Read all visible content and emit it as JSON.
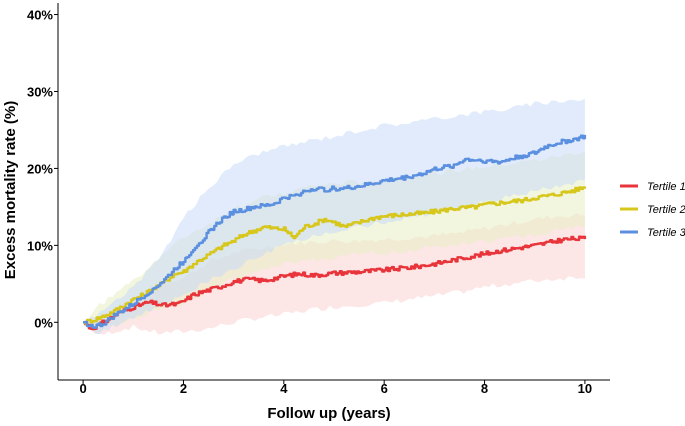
{
  "chart_data": {
    "type": "line",
    "title": "",
    "xlabel": "Follow up (years)",
    "ylabel": "Excess mortality rate (%)",
    "xlim": [
      -0.5,
      10.5
    ],
    "ylim": [
      -7.5,
      41.5
    ],
    "x_ticks": [
      0,
      2,
      4,
      6,
      8,
      10
    ],
    "x_tick_labels": [
      "0",
      "2",
      "4",
      "6",
      "8",
      "10"
    ],
    "y_ticks": [
      0,
      10,
      20,
      30,
      40
    ],
    "y_tick_labels": [
      "0%",
      "10%",
      "20%",
      "30%",
      "40%"
    ],
    "legend_position": "right",
    "series": [
      {
        "name": "Tertile 1",
        "color": "#e8353b",
        "band_color": "#fbd1d1",
        "points": [
          [
            0,
            0
          ],
          [
            0.15,
            -0.8
          ],
          [
            0.3,
            -0.4
          ],
          [
            0.5,
            0.4
          ],
          [
            0.7,
            1.2
          ],
          [
            1,
            2
          ],
          [
            1.3,
            2.6
          ],
          [
            1.6,
            2.2
          ],
          [
            1.9,
            2.4
          ],
          [
            2.2,
            3.6
          ],
          [
            2.5,
            4.2
          ],
          [
            2.8,
            4.8
          ],
          [
            3,
            5.3
          ],
          [
            3.3,
            5.6
          ],
          [
            3.6,
            5.4
          ],
          [
            4,
            6
          ],
          [
            4.3,
            6.3
          ],
          [
            4.6,
            6.1
          ],
          [
            5,
            6.4
          ],
          [
            5.3,
            6.5
          ],
          [
            5.6,
            6.6
          ],
          [
            6,
            6.8
          ],
          [
            6.3,
            7
          ],
          [
            6.6,
            7.2
          ],
          [
            7,
            7.6
          ],
          [
            7.3,
            8
          ],
          [
            7.6,
            8.4
          ],
          [
            8,
            8.9
          ],
          [
            8.3,
            9.3
          ],
          [
            8.6,
            9.6
          ],
          [
            9,
            10
          ],
          [
            9.3,
            10.4
          ],
          [
            9.6,
            10.8
          ],
          [
            10,
            10.9
          ]
        ],
        "lower": [
          [
            0,
            0
          ],
          [
            0.3,
            -1.8
          ],
          [
            0.6,
            -1.2
          ],
          [
            1,
            -0.6
          ],
          [
            1.5,
            -1.4
          ],
          [
            2,
            -1.2
          ],
          [
            2.5,
            -0.8
          ],
          [
            3,
            0
          ],
          [
            3.5,
            0.6
          ],
          [
            4,
            1
          ],
          [
            4.5,
            1.6
          ],
          [
            5,
            2
          ],
          [
            5.5,
            2.3
          ],
          [
            6,
            2.5
          ],
          [
            6.5,
            3
          ],
          [
            7,
            3.4
          ],
          [
            7.5,
            3.9
          ],
          [
            8,
            4.6
          ],
          [
            8.5,
            5
          ],
          [
            9,
            5.4
          ],
          [
            9.5,
            5.7
          ],
          [
            10,
            6
          ]
        ],
        "upper": [
          [
            0,
            0
          ],
          [
            0.3,
            0.8
          ],
          [
            0.6,
            1.6
          ],
          [
            1,
            3.2
          ],
          [
            1.5,
            5
          ],
          [
            2,
            5.8
          ],
          [
            2.5,
            7.8
          ],
          [
            3,
            9
          ],
          [
            3.5,
            9.6
          ],
          [
            4,
            10.2
          ],
          [
            4.5,
            10.4
          ],
          [
            5,
            10.6
          ],
          [
            5.5,
            10.6
          ],
          [
            6,
            10.8
          ],
          [
            6.5,
            11
          ],
          [
            7,
            11.2
          ],
          [
            7.5,
            11.6
          ],
          [
            8,
            12.2
          ],
          [
            8.5,
            12.8
          ],
          [
            9,
            13.4
          ],
          [
            9.5,
            13.8
          ],
          [
            10,
            14
          ]
        ]
      },
      {
        "name": "Tertile 2",
        "color": "#d7c71c",
        "band_color": "#e8efc2",
        "points": [
          [
            0,
            0
          ],
          [
            0.2,
            0.3
          ],
          [
            0.4,
            0.8
          ],
          [
            0.6,
            1.4
          ],
          [
            0.8,
            2.2
          ],
          [
            1,
            3
          ],
          [
            1.2,
            3.6
          ],
          [
            1.4,
            4.4
          ],
          [
            1.6,
            5.2
          ],
          [
            1.8,
            6.2
          ],
          [
            2,
            6.6
          ],
          [
            2.2,
            7.6
          ],
          [
            2.4,
            8.4
          ],
          [
            2.6,
            9.2
          ],
          [
            2.8,
            10
          ],
          [
            3,
            10.6
          ],
          [
            3.2,
            11.4
          ],
          [
            3.4,
            11.9
          ],
          [
            3.6,
            12.4
          ],
          [
            3.8,
            12.2
          ],
          [
            4,
            12.1
          ],
          [
            4.2,
            11
          ],
          [
            4.4,
            12.4
          ],
          [
            4.6,
            12.8
          ],
          [
            4.8,
            13.4
          ],
          [
            5,
            13
          ],
          [
            5.2,
            12.4
          ],
          [
            5.4,
            12.8
          ],
          [
            5.6,
            13.2
          ],
          [
            5.8,
            13.6
          ],
          [
            6,
            13.8
          ],
          [
            6.4,
            14
          ],
          [
            6.8,
            14.2
          ],
          [
            7,
            14.4
          ],
          [
            7.4,
            14.8
          ],
          [
            7.8,
            15
          ],
          [
            8,
            15.3
          ],
          [
            8.4,
            15.6
          ],
          [
            8.8,
            15.9
          ],
          [
            9,
            16.2
          ],
          [
            9.4,
            16.6
          ],
          [
            9.8,
            17.2
          ],
          [
            10,
            17.6
          ]
        ],
        "lower": [
          [
            0,
            0
          ],
          [
            0.3,
            -1
          ],
          [
            0.6,
            -0.4
          ],
          [
            1,
            0.6
          ],
          [
            1.5,
            1.6
          ],
          [
            2,
            2.4
          ],
          [
            2.5,
            4
          ],
          [
            3,
            5.6
          ],
          [
            3.5,
            6.6
          ],
          [
            4,
            7.6
          ],
          [
            4.5,
            8
          ],
          [
            5,
            8.4
          ],
          [
            5.5,
            8.8
          ],
          [
            6,
            9.1
          ],
          [
            6.5,
            9.4
          ],
          [
            7,
            9.8
          ],
          [
            7.5,
            10.2
          ],
          [
            8,
            10.6
          ],
          [
            8.5,
            11
          ],
          [
            9,
            11.4
          ],
          [
            9.5,
            12
          ],
          [
            10,
            12.5
          ]
        ],
        "upper": [
          [
            0,
            0
          ],
          [
            0.3,
            2
          ],
          [
            0.6,
            3.6
          ],
          [
            1,
            5.4
          ],
          [
            1.5,
            8.4
          ],
          [
            2,
            11
          ],
          [
            2.5,
            12.8
          ],
          [
            3,
            14.8
          ],
          [
            3.5,
            16
          ],
          [
            4,
            16.8
          ],
          [
            4.5,
            17.6
          ],
          [
            5,
            18
          ],
          [
            5.5,
            18.2
          ],
          [
            6,
            18.6
          ],
          [
            6.5,
            19
          ],
          [
            7,
            19.4
          ],
          [
            7.5,
            19.8
          ],
          [
            8,
            20.2
          ],
          [
            8.5,
            20.6
          ],
          [
            9,
            21
          ],
          [
            9.5,
            21.6
          ],
          [
            10,
            22.2
          ]
        ]
      },
      {
        "name": "Tertile 3",
        "color": "#5b8fe0",
        "band_color": "#c9dbf7",
        "points": [
          [
            0,
            0
          ],
          [
            0.2,
            -0.6
          ],
          [
            0.4,
            -0.2
          ],
          [
            0.6,
            0.8
          ],
          [
            0.8,
            1.6
          ],
          [
            1,
            2.4
          ],
          [
            1.2,
            3.4
          ],
          [
            1.4,
            4.4
          ],
          [
            1.6,
            5.4
          ],
          [
            1.8,
            6.8
          ],
          [
            2,
            8
          ],
          [
            2.2,
            9.6
          ],
          [
            2.4,
            11
          ],
          [
            2.6,
            12.4
          ],
          [
            2.8,
            13.6
          ],
          [
            3,
            14.4
          ],
          [
            3.2,
            14.6
          ],
          [
            3.4,
            15
          ],
          [
            3.6,
            15.1
          ],
          [
            3.8,
            15.4
          ],
          [
            4,
            16.2
          ],
          [
            4.2,
            16.4
          ],
          [
            4.4,
            17
          ],
          [
            4.6,
            17.4
          ],
          [
            4.8,
            17.2
          ],
          [
            5,
            17.4
          ],
          [
            5.2,
            17.4
          ],
          [
            5.6,
            17.8
          ],
          [
            6,
            18.4
          ],
          [
            6.4,
            18.8
          ],
          [
            6.8,
            19.4
          ],
          [
            7,
            19.9
          ],
          [
            7.4,
            20.4
          ],
          [
            7.6,
            21.2
          ],
          [
            8,
            21
          ],
          [
            8.3,
            20.8
          ],
          [
            8.6,
            21.4
          ],
          [
            9,
            22
          ],
          [
            9.2,
            22.8
          ],
          [
            9.5,
            23.4
          ],
          [
            9.8,
            23.8
          ],
          [
            10,
            24.2
          ]
        ],
        "lower": [
          [
            0,
            0
          ],
          [
            0.3,
            -1.5
          ],
          [
            0.6,
            -0.6
          ],
          [
            1,
            0.6
          ],
          [
            1.5,
            2
          ],
          [
            2,
            3.6
          ],
          [
            2.5,
            5.4
          ],
          [
            3,
            7
          ],
          [
            3.5,
            8.4
          ],
          [
            4,
            10
          ],
          [
            4.5,
            11
          ],
          [
            5,
            11.8
          ],
          [
            5.5,
            12.4
          ],
          [
            6,
            13
          ],
          [
            6.5,
            13.6
          ],
          [
            7,
            14.2
          ],
          [
            7.5,
            15
          ],
          [
            8,
            15.6
          ],
          [
            8.5,
            16.4
          ],
          [
            9,
            17
          ],
          [
            9.5,
            17.8
          ],
          [
            10,
            18.4
          ]
        ],
        "upper": [
          [
            0,
            0
          ],
          [
            0.3,
            1
          ],
          [
            0.6,
            2.6
          ],
          [
            1,
            4.6
          ],
          [
            1.5,
            8
          ],
          [
            2,
            13.6
          ],
          [
            2.5,
            17.4
          ],
          [
            3,
            20.6
          ],
          [
            3.5,
            22
          ],
          [
            4,
            22.8
          ],
          [
            4.5,
            23.6
          ],
          [
            5,
            24.2
          ],
          [
            5.5,
            25
          ],
          [
            6,
            25.6
          ],
          [
            6.5,
            26
          ],
          [
            7,
            26.4
          ],
          [
            7.5,
            27
          ],
          [
            8,
            27.4
          ],
          [
            8.5,
            27.8
          ],
          [
            9,
            28.4
          ],
          [
            9.5,
            28.8
          ],
          [
            10,
            29
          ]
        ]
      }
    ]
  }
}
